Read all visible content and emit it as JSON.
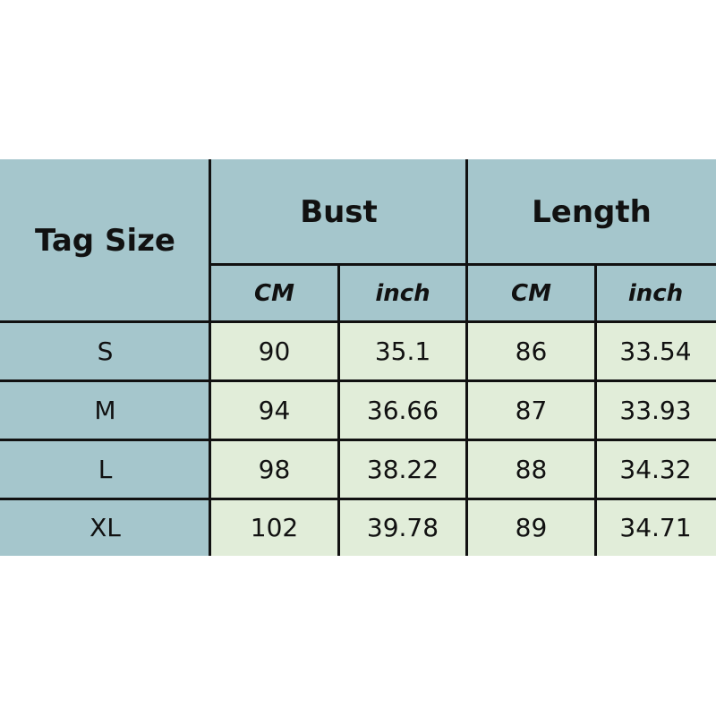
{
  "table": {
    "headers": {
      "tag_size": "Tag Size",
      "bust": "Bust",
      "length": "Length",
      "units": [
        "CM",
        "inch",
        "CM",
        "inch"
      ]
    },
    "rows": [
      {
        "size": "S",
        "bust_cm": "90",
        "bust_inch": "35.1",
        "length_cm": "86",
        "length_inch": "33.54"
      },
      {
        "size": "M",
        "bust_cm": "94",
        "bust_inch": "36.66",
        "length_cm": "87",
        "length_inch": "33.93"
      },
      {
        "size": "L",
        "bust_cm": "98",
        "bust_inch": "38.22",
        "length_cm": "88",
        "length_inch": "34.32"
      },
      {
        "size": "XL",
        "bust_cm": "102",
        "bust_inch": "39.78",
        "length_cm": "89",
        "length_inch": "34.71"
      }
    ],
    "colors": {
      "header_bg": "#a5c6cc",
      "data_bg": "#e1edd9",
      "border": "#111111"
    }
  }
}
